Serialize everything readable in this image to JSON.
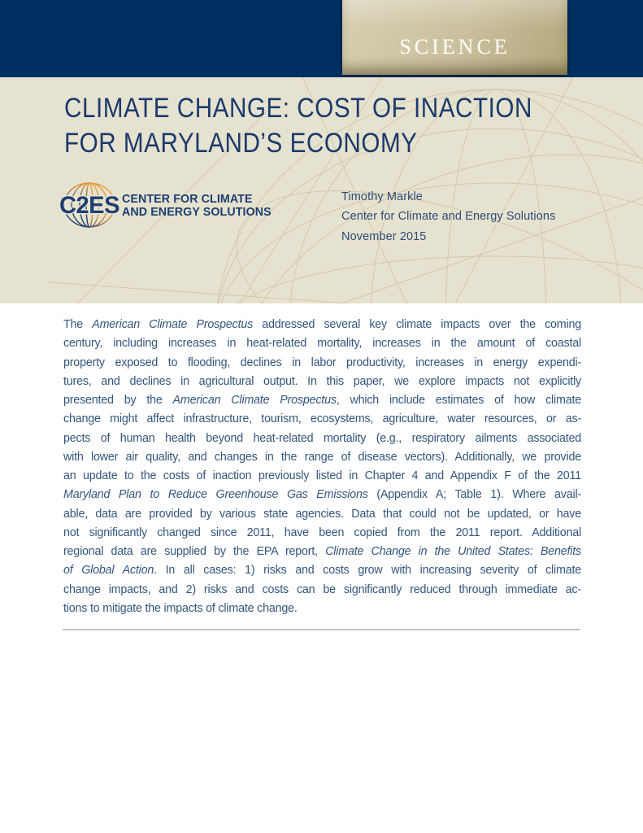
{
  "header": {
    "kicker": "SCIENCE"
  },
  "banner": {
    "title_line1": "CLIMATE CHANGE: COST OF INACTION",
    "title_line2": "FOR MARYLAND’S ECONOMY",
    "logo": {
      "acronym": "C2ES",
      "name_line1": "CENTER FOR CLIMATE",
      "name_line2": "AND ENERGY SOLUTIONS"
    },
    "byline": {
      "author": "Timothy Markle",
      "organization": "Center for Climate and Energy Solutions",
      "date": "November 2015"
    }
  },
  "body": {
    "lines": [
      [
        {
          "t": "The "
        },
        {
          "t": "American Climate Prospectus",
          "i": true
        },
        {
          "t": " addressed several key climate impacts over the coming"
        }
      ],
      [
        {
          "t": "century, including increases in heat-related mortality, increases in the amount of coastal"
        }
      ],
      [
        {
          "t": "property exposed to flooding, declines in labor productivity, increases in energy expendi-"
        }
      ],
      [
        {
          "t": "tures, and declines in agricultural output. In this paper, we explore impacts not explicitly"
        }
      ],
      [
        {
          "t": "presented by the "
        },
        {
          "t": "American Climate Prospectus",
          "i": true
        },
        {
          "t": ", which include estimates of how climate"
        }
      ],
      [
        {
          "t": "change might affect infrastructure, tourism, ecosystems, agriculture, water resources, or as-"
        }
      ],
      [
        {
          "t": "pects of human health beyond heat-related mortality (e.g., respiratory ailments associated"
        }
      ],
      [
        {
          "t": "with lower air quality, and changes in the range of disease vectors). Additionally, we provide"
        }
      ],
      [
        {
          "t": "an update to the costs of inaction previously listed in Chapter 4 and Appendix F of the 2011"
        }
      ],
      [
        {
          "t": "Maryland Plan to Reduce Greenhouse Gas Emissions",
          "i": true
        },
        {
          "t": " (Appendix A; Table 1). Where avail-"
        }
      ],
      [
        {
          "t": "able, data are provided by various state agencies. Data that could not be updated, or have"
        }
      ],
      [
        {
          "t": "not significantly changed since 2011, have been copied from the 2011 report. Additional"
        }
      ],
      [
        {
          "t": "regional data are supplied by the EPA report, "
        },
        {
          "t": "Climate Change in the United States: Benefits",
          "i": true
        }
      ],
      [
        {
          "t": "of Global Action",
          "i": true
        },
        {
          "t": ". In all cases: 1) risks and costs grow with increasing severity of climate"
        }
      ],
      [
        {
          "t": "change impacts, and 2) risks and costs can be significantly reduced through immediate ac-"
        }
      ],
      [
        {
          "t": "tions to mitigate the impacts of climate change.",
          "last": true
        }
      ]
    ]
  },
  "colors": {
    "header_navy": "#003063",
    "banner_beige": "#e6e2d0",
    "tab_gold_light": "#d8d0b3",
    "tab_gold_dark": "#b2a67b",
    "title_navy": "#1c3a6b",
    "body_text_blue": "#33567d",
    "logo_navy": "#1d3e70",
    "logo_orange": "#eda13a",
    "wireframe_tan": "#ccc29b"
  }
}
